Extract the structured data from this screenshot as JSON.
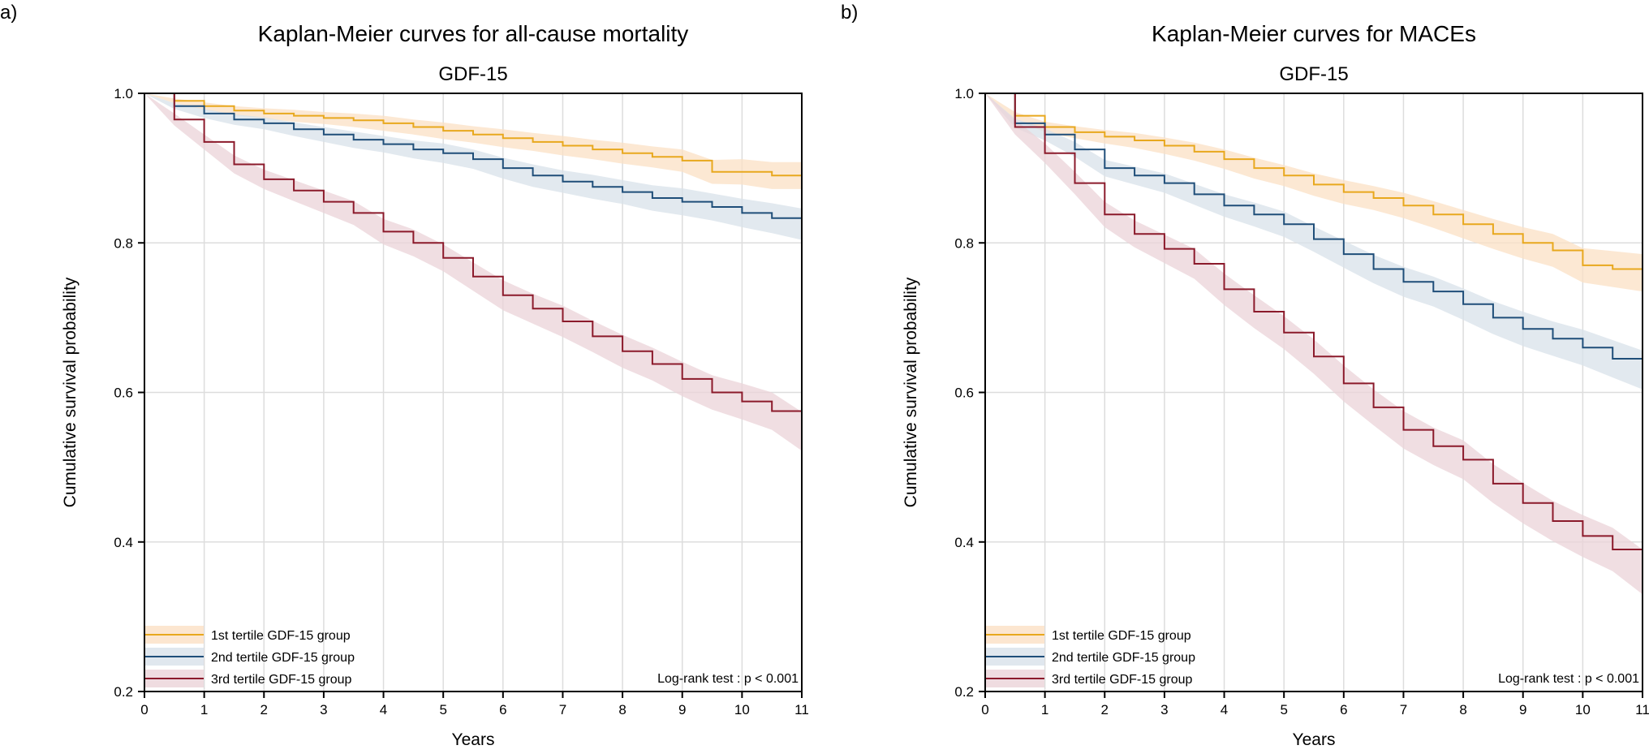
{
  "chart_data": [
    {
      "panel_label": "a)",
      "type": "line",
      "title": "Kaplan-Meier curves for all-cause mortality",
      "subtitle": "GDF-15",
      "xlabel": "Years",
      "ylabel": "Cumulative survival probability",
      "xlim": [
        0,
        11
      ],
      "ylim": [
        0.2,
        1.0
      ],
      "xticks": [
        "0",
        "1",
        "2",
        "3",
        "4",
        "5",
        "6",
        "7",
        "8",
        "9",
        "10",
        "11"
      ],
      "yticks": [
        "0.2",
        "0.4",
        "0.6",
        "0.8",
        "1.0"
      ],
      "grid": true,
      "legend_position": "bottom-left",
      "annotation": "Log-rank test : p < 0.001",
      "x": [
        0,
        0.5,
        1,
        1.5,
        2,
        2.5,
        3,
        3.5,
        4,
        4.5,
        5,
        5.5,
        6,
        6.5,
        7,
        7.5,
        8,
        8.5,
        9,
        9.5,
        10,
        10.5,
        11
      ],
      "series": [
        {
          "name": "1st tertile GDF-15 group",
          "color": "#E8A81E",
          "band_color": "#FBE0C4",
          "values": [
            1.0,
            0.99,
            0.983,
            0.977,
            0.973,
            0.97,
            0.967,
            0.964,
            0.96,
            0.955,
            0.95,
            0.945,
            0.94,
            0.935,
            0.93,
            0.925,
            0.92,
            0.915,
            0.91,
            0.895,
            0.895,
            0.89,
            0.89
          ],
          "ci_width": [
            0,
            0.003,
            0.005,
            0.006,
            0.007,
            0.008,
            0.008,
            0.009,
            0.01,
            0.01,
            0.011,
            0.011,
            0.012,
            0.012,
            0.013,
            0.013,
            0.014,
            0.014,
            0.015,
            0.016,
            0.017,
            0.018,
            0.018
          ]
        },
        {
          "name": "2nd tertile GDF-15 group",
          "color": "#1F4E79",
          "band_color": "#D8E1EA",
          "values": [
            1.0,
            0.983,
            0.973,
            0.965,
            0.96,
            0.952,
            0.945,
            0.938,
            0.932,
            0.925,
            0.92,
            0.912,
            0.9,
            0.89,
            0.882,
            0.875,
            0.868,
            0.86,
            0.855,
            0.848,
            0.84,
            0.833,
            0.825
          ],
          "ci_width": [
            0,
            0.004,
            0.006,
            0.007,
            0.008,
            0.009,
            0.01,
            0.011,
            0.011,
            0.012,
            0.013,
            0.013,
            0.014,
            0.015,
            0.015,
            0.016,
            0.016,
            0.017,
            0.018,
            0.018,
            0.019,
            0.02,
            0.021
          ]
        },
        {
          "name": "3rd tertile GDF-15 group",
          "color": "#8B1A2B",
          "band_color": "#EBD3D8",
          "values": [
            1.0,
            0.965,
            0.935,
            0.905,
            0.885,
            0.87,
            0.855,
            0.84,
            0.815,
            0.8,
            0.78,
            0.755,
            0.73,
            0.712,
            0.695,
            0.675,
            0.655,
            0.638,
            0.618,
            0.6,
            0.588,
            0.575,
            0.548
          ],
          "ci_width": [
            0,
            0.008,
            0.01,
            0.012,
            0.013,
            0.014,
            0.015,
            0.016,
            0.017,
            0.018,
            0.018,
            0.019,
            0.02,
            0.02,
            0.021,
            0.021,
            0.022,
            0.022,
            0.023,
            0.023,
            0.024,
            0.025,
            0.026
          ]
        }
      ]
    },
    {
      "panel_label": "b)",
      "type": "line",
      "title": "Kaplan-Meier curves for MACEs",
      "subtitle": "GDF-15",
      "xlabel": "Years",
      "ylabel": "Cumulative survival probability",
      "xlim": [
        0,
        11
      ],
      "ylim": [
        0.2,
        1.0
      ],
      "xticks": [
        "0",
        "1",
        "2",
        "3",
        "4",
        "5",
        "6",
        "7",
        "8",
        "9",
        "10",
        "11"
      ],
      "yticks": [
        "0.2",
        "0.4",
        "0.6",
        "0.8",
        "1.0"
      ],
      "grid": true,
      "legend_position": "bottom-left",
      "annotation": "Log-rank test : p < 0.001",
      "x": [
        0,
        0.5,
        1,
        1.5,
        2,
        2.5,
        3,
        3.5,
        4,
        4.5,
        5,
        5.5,
        6,
        6.5,
        7,
        7.5,
        8,
        8.5,
        9,
        9.5,
        10,
        10.5,
        11
      ],
      "series": [
        {
          "name": "1st tertile GDF-15 group",
          "color": "#E8A81E",
          "band_color": "#FBE0C4",
          "values": [
            1.0,
            0.97,
            0.955,
            0.948,
            0.942,
            0.937,
            0.93,
            0.922,
            0.912,
            0.9,
            0.89,
            0.878,
            0.868,
            0.86,
            0.85,
            0.838,
            0.825,
            0.812,
            0.8,
            0.79,
            0.77,
            0.765,
            0.76
          ],
          "ci_width": [
            0,
            0.005,
            0.007,
            0.008,
            0.009,
            0.01,
            0.011,
            0.012,
            0.013,
            0.014,
            0.014,
            0.015,
            0.016,
            0.016,
            0.017,
            0.018,
            0.019,
            0.02,
            0.021,
            0.022,
            0.023,
            0.024,
            0.025
          ]
        },
        {
          "name": "2nd tertile GDF-15 group",
          "color": "#1F4E79",
          "band_color": "#D8E1EA",
          "values": [
            1.0,
            0.96,
            0.945,
            0.925,
            0.9,
            0.89,
            0.88,
            0.865,
            0.85,
            0.838,
            0.825,
            0.805,
            0.785,
            0.765,
            0.748,
            0.735,
            0.718,
            0.7,
            0.685,
            0.672,
            0.66,
            0.645,
            0.63
          ],
          "ci_width": [
            0,
            0.006,
            0.008,
            0.01,
            0.011,
            0.012,
            0.013,
            0.014,
            0.015,
            0.016,
            0.017,
            0.017,
            0.018,
            0.019,
            0.02,
            0.02,
            0.021,
            0.022,
            0.023,
            0.023,
            0.024,
            0.025,
            0.026
          ]
        },
        {
          "name": "3rd tertile GDF-15 group",
          "color": "#8B1A2B",
          "band_color": "#EBD3D8",
          "values": [
            1.0,
            0.955,
            0.92,
            0.88,
            0.838,
            0.812,
            0.792,
            0.772,
            0.738,
            0.708,
            0.68,
            0.648,
            0.612,
            0.58,
            0.55,
            0.528,
            0.51,
            0.478,
            0.452,
            0.428,
            0.408,
            0.39,
            0.36
          ],
          "ci_width": [
            0,
            0.01,
            0.013,
            0.015,
            0.017,
            0.018,
            0.019,
            0.02,
            0.021,
            0.022,
            0.022,
            0.023,
            0.024,
            0.024,
            0.025,
            0.025,
            0.026,
            0.026,
            0.027,
            0.027,
            0.028,
            0.029,
            0.03
          ]
        }
      ]
    }
  ]
}
